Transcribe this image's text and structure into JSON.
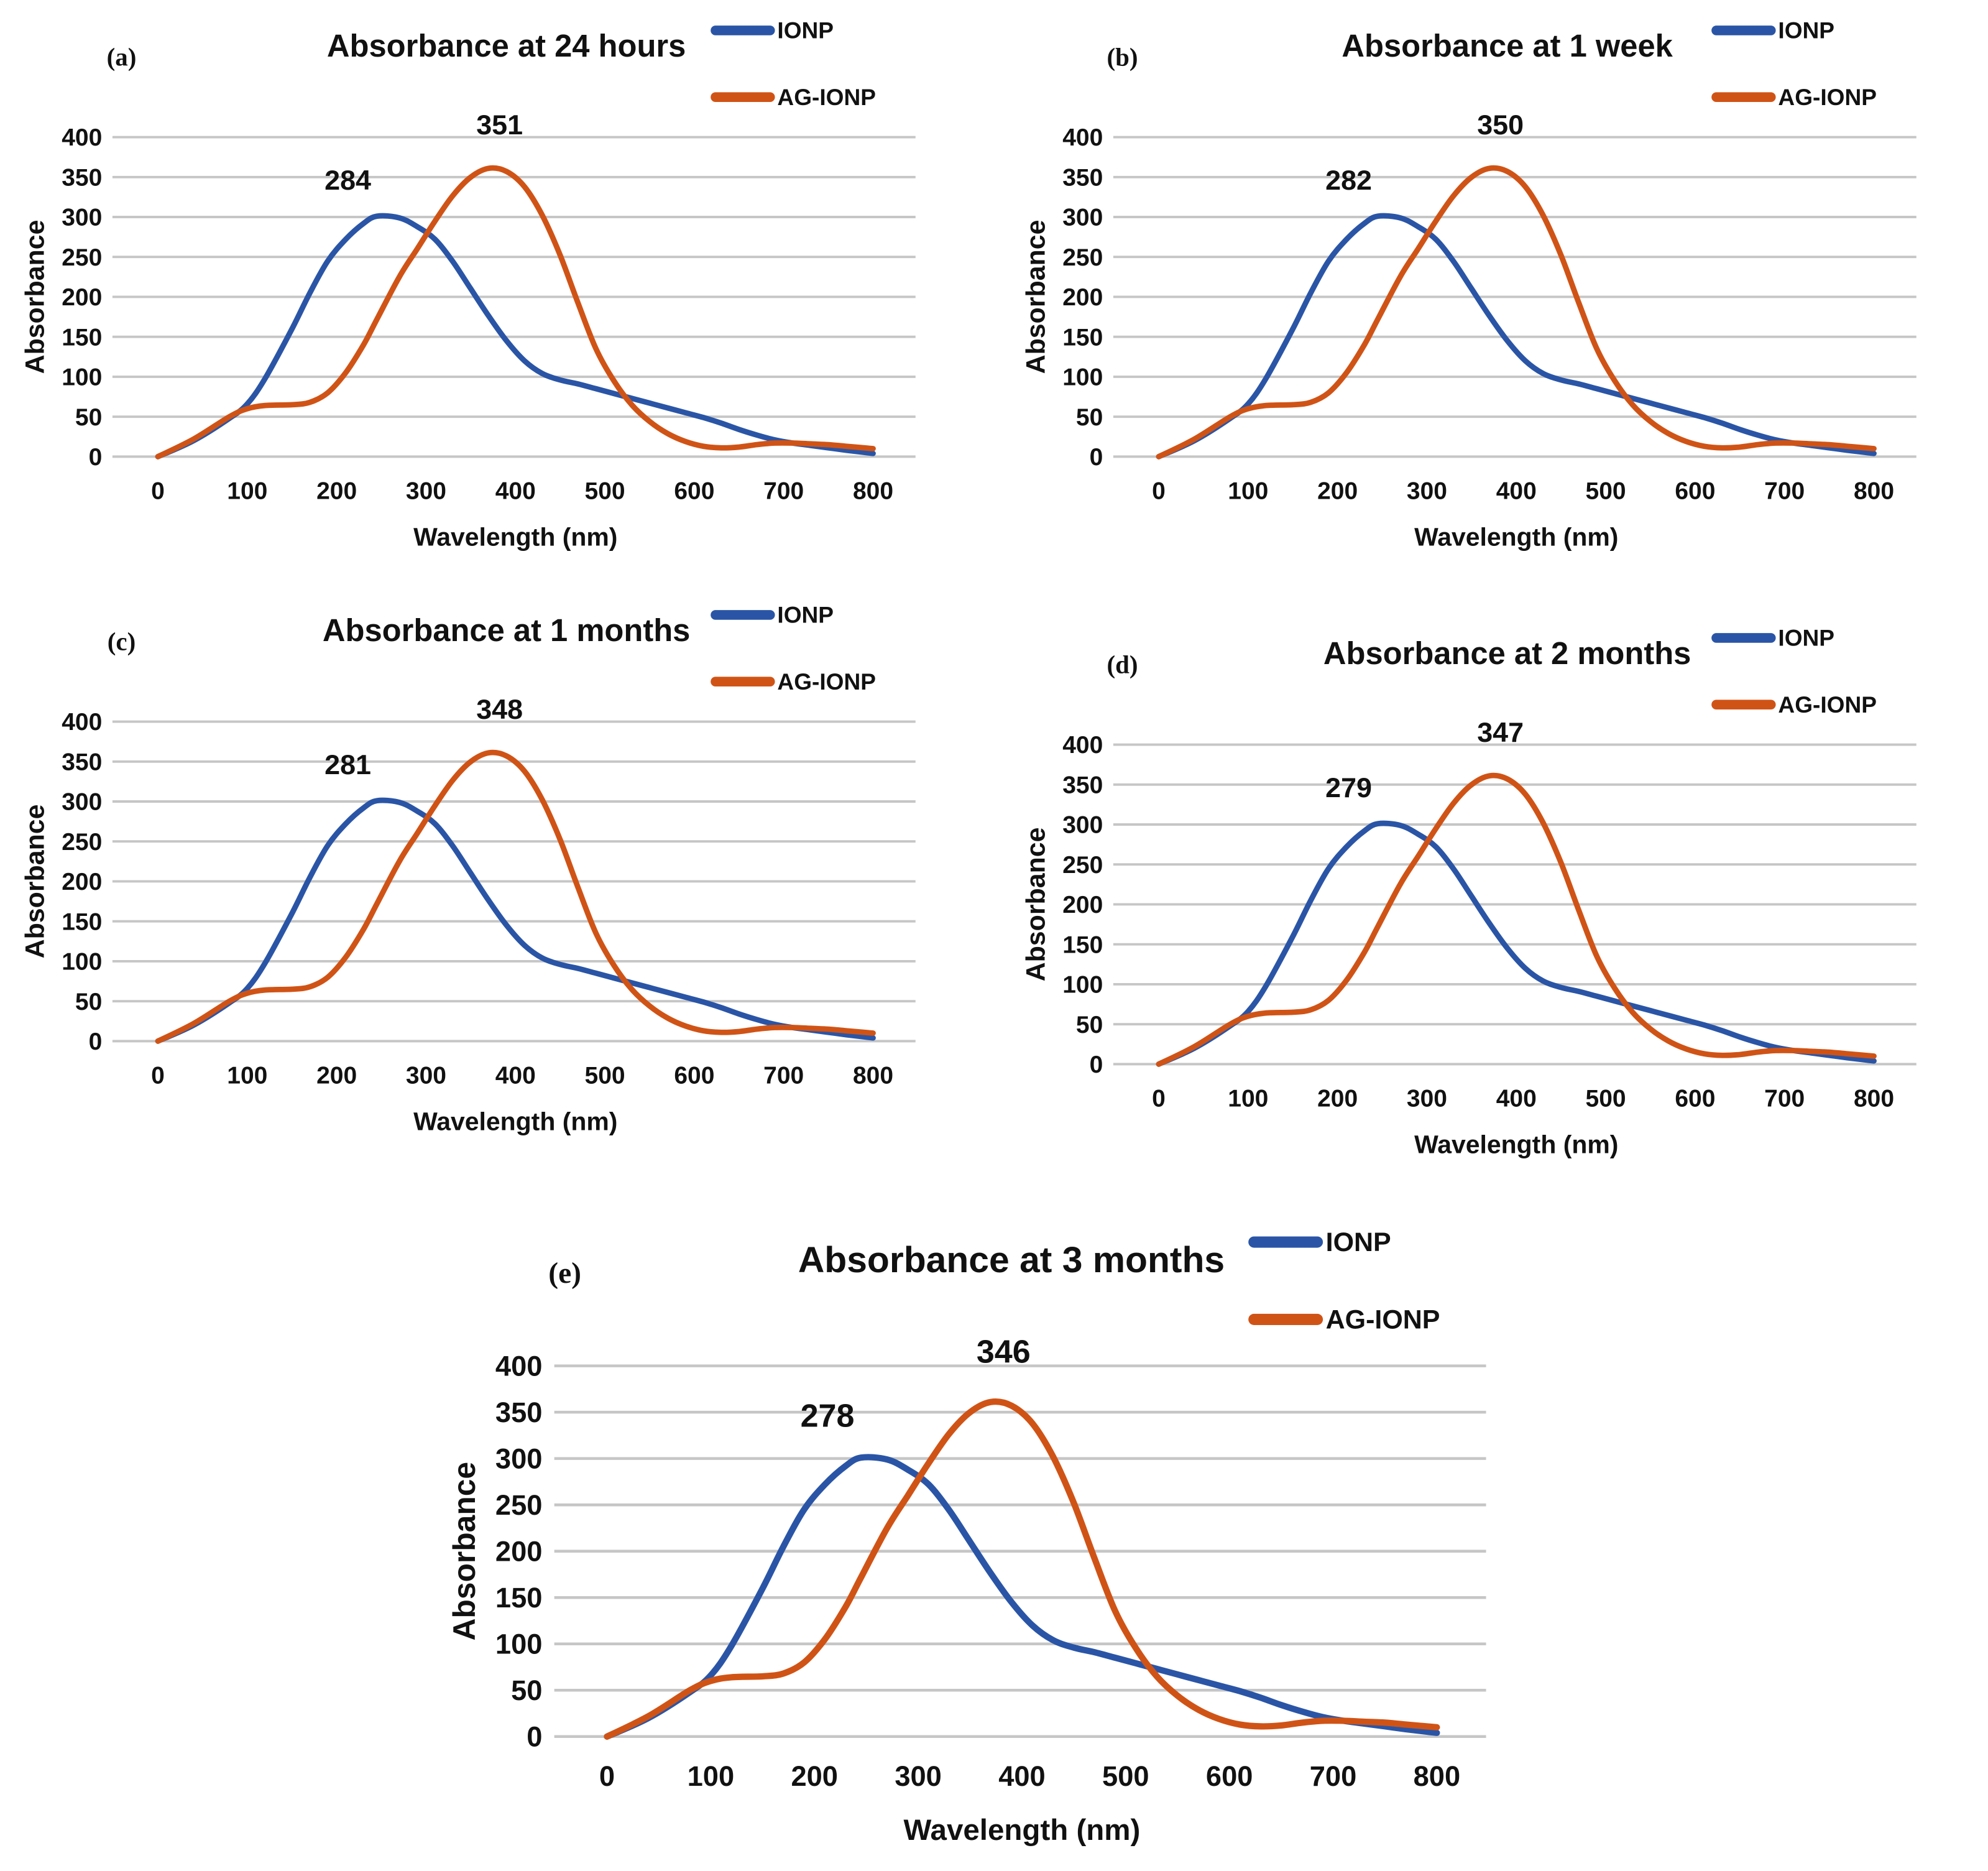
{
  "legend": {
    "ionp": "IONP",
    "ag_ionp": "AG-IONP",
    "position": "top-right"
  },
  "colors": {
    "ionp": "#2a55a6",
    "ag_ionp": "#d05316",
    "grid": "#c6c6c6",
    "text": "#111111"
  },
  "axes": {
    "ylabel": "Absorbance",
    "xlabel": "Wavelength (nm)",
    "ylim": [
      0,
      400
    ],
    "xlim": [
      0,
      800
    ],
    "y_ticks": [
      400,
      350,
      300,
      250,
      200,
      150,
      100,
      50,
      0
    ],
    "x_ticks": [
      0,
      100,
      200,
      300,
      400,
      500,
      600,
      700,
      800
    ],
    "grid": "horizontal-only"
  },
  "chart_data": [
    {
      "type": "line",
      "panel_id": "a",
      "panel_label": "(a)",
      "title": "Absorbance at 24 hours",
      "xlabel": "Wavelength (nm)",
      "ylabel": "Absorbance",
      "xlim": [
        0,
        800
      ],
      "ylim": [
        0,
        400
      ],
      "peaks": [
        {
          "series": "IONP",
          "label": "284",
          "anchor_x": 245,
          "anchor_y": 301
        },
        {
          "series": "AG-IONP",
          "label": "351",
          "anchor_x": 370,
          "anchor_y": 361
        }
      ],
      "x": [
        0,
        40,
        80,
        100,
        120,
        150,
        170,
        190,
        210,
        230,
        245,
        270,
        290,
        310,
        330,
        350,
        370,
        390,
        410,
        430,
        450,
        470,
        490,
        510,
        530,
        550,
        570,
        590,
        610,
        630,
        650,
        670,
        690,
        710,
        730,
        750,
        770,
        800
      ],
      "series": [
        {
          "name": "IONP",
          "values": [
            0,
            20,
            48,
            66,
            98,
            160,
            205,
            245,
            272,
            292,
            301,
            299,
            288,
            272,
            244,
            210,
            176,
            145,
            120,
            104,
            96,
            91,
            85,
            79,
            73,
            67,
            61,
            55,
            49,
            42,
            34,
            27,
            21,
            17,
            14,
            11,
            8,
            4
          ]
        },
        {
          "name": "AG-IONP",
          "values": [
            0,
            22,
            50,
            60,
            64,
            65,
            68,
            80,
            105,
            140,
            172,
            225,
            260,
            295,
            327,
            350,
            361,
            357,
            338,
            302,
            252,
            192,
            135,
            95,
            65,
            44,
            29,
            19,
            13,
            11,
            12,
            15,
            17,
            17,
            16,
            15,
            13,
            10
          ]
        }
      ]
    },
    {
      "type": "line",
      "panel_id": "b",
      "panel_label": "(b)",
      "title": "Absorbance at 1 week",
      "xlabel": "Wavelength (nm)",
      "ylabel": "Absorbance",
      "xlim": [
        0,
        800
      ],
      "ylim": [
        0,
        400
      ],
      "peaks": [
        {
          "series": "IONP",
          "label": "282",
          "anchor_x": 245,
          "anchor_y": 301
        },
        {
          "series": "AG-IONP",
          "label": "350",
          "anchor_x": 370,
          "anchor_y": 361
        }
      ],
      "x": [
        0,
        40,
        80,
        100,
        120,
        150,
        170,
        190,
        210,
        230,
        245,
        270,
        290,
        310,
        330,
        350,
        370,
        390,
        410,
        430,
        450,
        470,
        490,
        510,
        530,
        550,
        570,
        590,
        610,
        630,
        650,
        670,
        690,
        710,
        730,
        750,
        770,
        800
      ],
      "series": [
        {
          "name": "IONP",
          "values": [
            0,
            20,
            48,
            66,
            98,
            160,
            205,
            245,
            272,
            292,
            301,
            299,
            288,
            272,
            244,
            210,
            176,
            145,
            120,
            104,
            96,
            91,
            85,
            79,
            73,
            67,
            61,
            55,
            49,
            42,
            34,
            27,
            21,
            17,
            14,
            11,
            8,
            4
          ]
        },
        {
          "name": "AG-IONP",
          "values": [
            0,
            22,
            50,
            60,
            64,
            65,
            68,
            80,
            105,
            140,
            172,
            225,
            260,
            295,
            327,
            350,
            361,
            357,
            338,
            302,
            252,
            192,
            135,
            95,
            65,
            44,
            29,
            19,
            13,
            11,
            12,
            15,
            17,
            17,
            16,
            15,
            13,
            10
          ]
        }
      ]
    },
    {
      "type": "line",
      "panel_id": "c",
      "panel_label": "(c)",
      "title": "Absorbance at 1 months",
      "xlabel": "Wavelength (nm)",
      "ylabel": "Absorbance",
      "xlim": [
        0,
        800
      ],
      "ylim": [
        0,
        400
      ],
      "peaks": [
        {
          "series": "IONP",
          "label": "281",
          "anchor_x": 245,
          "anchor_y": 301
        },
        {
          "series": "AG-IONP",
          "label": "348",
          "anchor_x": 370,
          "anchor_y": 361
        }
      ],
      "x": [
        0,
        40,
        80,
        100,
        120,
        150,
        170,
        190,
        210,
        230,
        245,
        270,
        290,
        310,
        330,
        350,
        370,
        390,
        410,
        430,
        450,
        470,
        490,
        510,
        530,
        550,
        570,
        590,
        610,
        630,
        650,
        670,
        690,
        710,
        730,
        750,
        770,
        800
      ],
      "series": [
        {
          "name": "IONP",
          "values": [
            0,
            20,
            48,
            66,
            98,
            160,
            205,
            245,
            272,
            292,
            301,
            299,
            288,
            272,
            244,
            210,
            176,
            145,
            120,
            104,
            96,
            91,
            85,
            79,
            73,
            67,
            61,
            55,
            49,
            42,
            34,
            27,
            21,
            17,
            14,
            11,
            8,
            4
          ]
        },
        {
          "name": "AG-IONP",
          "values": [
            0,
            22,
            50,
            60,
            64,
            65,
            68,
            80,
            105,
            140,
            172,
            225,
            260,
            295,
            327,
            350,
            361,
            357,
            338,
            302,
            252,
            192,
            135,
            95,
            65,
            44,
            29,
            19,
            13,
            11,
            12,
            15,
            17,
            17,
            16,
            15,
            13,
            10
          ]
        }
      ]
    },
    {
      "type": "line",
      "panel_id": "d",
      "panel_label": "(d)",
      "title": "Absorbance at 2 months",
      "xlabel": "Wavelength (nm)",
      "ylabel": "Absorbance",
      "xlim": [
        0,
        800
      ],
      "ylim": [
        0,
        400
      ],
      "peaks": [
        {
          "series": "IONP",
          "label": "279",
          "anchor_x": 245,
          "anchor_y": 301
        },
        {
          "series": "AG-IONP",
          "label": "347",
          "anchor_x": 370,
          "anchor_y": 361
        }
      ],
      "x": [
        0,
        40,
        80,
        100,
        120,
        150,
        170,
        190,
        210,
        230,
        245,
        270,
        290,
        310,
        330,
        350,
        370,
        390,
        410,
        430,
        450,
        470,
        490,
        510,
        530,
        550,
        570,
        590,
        610,
        630,
        650,
        670,
        690,
        710,
        730,
        750,
        770,
        800
      ],
      "series": [
        {
          "name": "IONP",
          "values": [
            0,
            20,
            48,
            66,
            98,
            160,
            205,
            245,
            272,
            292,
            301,
            299,
            288,
            272,
            244,
            210,
            176,
            145,
            120,
            104,
            96,
            91,
            85,
            79,
            73,
            67,
            61,
            55,
            49,
            42,
            34,
            27,
            21,
            17,
            14,
            11,
            8,
            4
          ]
        },
        {
          "name": "AG-IONP",
          "values": [
            0,
            22,
            50,
            60,
            64,
            65,
            68,
            80,
            105,
            140,
            172,
            225,
            260,
            295,
            327,
            350,
            361,
            357,
            338,
            302,
            252,
            192,
            135,
            95,
            65,
            44,
            29,
            19,
            13,
            11,
            12,
            15,
            17,
            17,
            16,
            15,
            13,
            10
          ]
        }
      ]
    },
    {
      "type": "line",
      "panel_id": "e",
      "panel_label": "(e)",
      "title": "Absorbance at 3 months",
      "xlabel": "Wavelength (nm)",
      "ylabel": "Absorbance",
      "xlim": [
        0,
        800
      ],
      "ylim": [
        0,
        400
      ],
      "peaks": [
        {
          "series": "IONP",
          "label": "278",
          "anchor_x": 245,
          "anchor_y": 301
        },
        {
          "series": "AG-IONP",
          "label": "346",
          "anchor_x": 370,
          "anchor_y": 361
        }
      ],
      "x": [
        0,
        40,
        80,
        100,
        120,
        150,
        170,
        190,
        210,
        230,
        245,
        270,
        290,
        310,
        330,
        350,
        370,
        390,
        410,
        430,
        450,
        470,
        490,
        510,
        530,
        550,
        570,
        590,
        610,
        630,
        650,
        670,
        690,
        710,
        730,
        750,
        770,
        800
      ],
      "series": [
        {
          "name": "IONP",
          "values": [
            0,
            20,
            48,
            66,
            98,
            160,
            205,
            245,
            272,
            292,
            301,
            299,
            288,
            272,
            244,
            210,
            176,
            145,
            120,
            104,
            96,
            91,
            85,
            79,
            73,
            67,
            61,
            55,
            49,
            42,
            34,
            27,
            21,
            17,
            14,
            11,
            8,
            4
          ]
        },
        {
          "name": "AG-IONP",
          "values": [
            0,
            22,
            50,
            60,
            64,
            65,
            68,
            80,
            105,
            140,
            172,
            225,
            260,
            295,
            327,
            350,
            361,
            357,
            338,
            302,
            252,
            192,
            135,
            95,
            65,
            44,
            29,
            19,
            13,
            11,
            12,
            15,
            17,
            17,
            16,
            15,
            13,
            10
          ]
        }
      ]
    }
  ]
}
